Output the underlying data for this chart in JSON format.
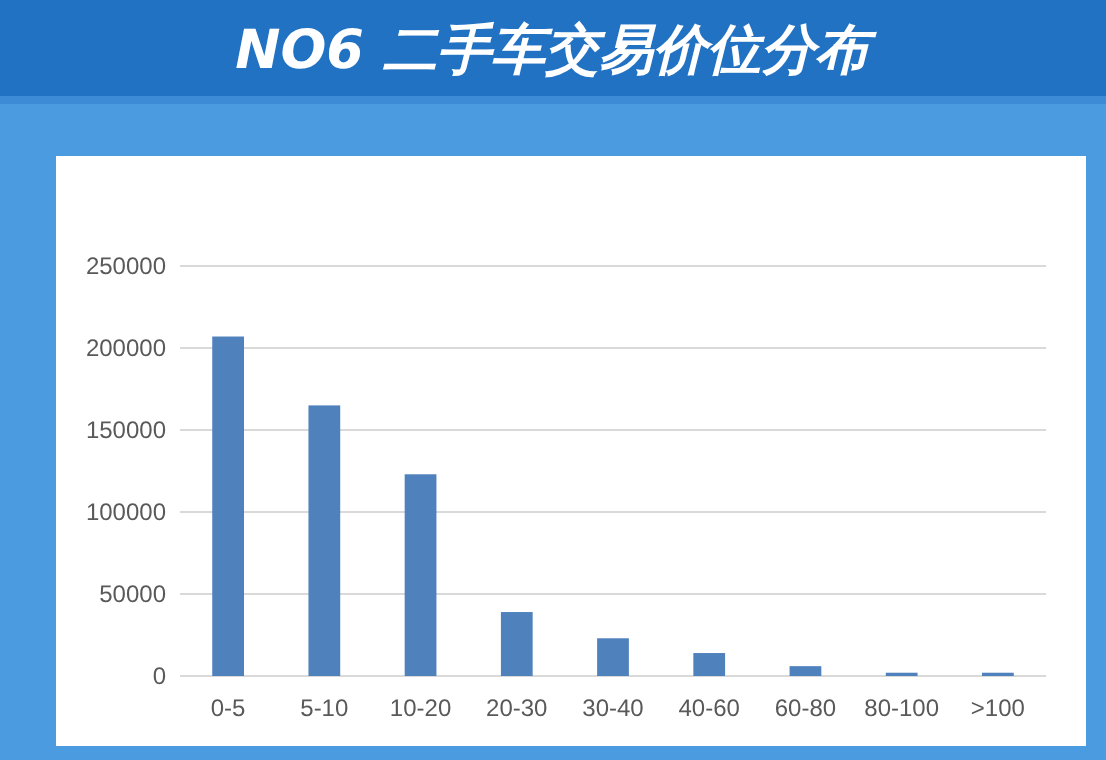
{
  "chart_data": {
    "type": "bar",
    "title": "NO6 二手车交易价位分布",
    "categories": [
      "0-5",
      "5-10",
      "10-20",
      "20-30",
      "30-40",
      "40-60",
      "60-80",
      "80-100",
      ">100"
    ],
    "values": [
      207000,
      165000,
      123000,
      39000,
      23000,
      14000,
      6000,
      2000,
      2000
    ],
    "color": "#4f81bd",
    "ylim": [
      0,
      250000
    ],
    "yticks": [
      0,
      50000,
      100000,
      150000,
      200000,
      250000
    ],
    "grid": "y"
  }
}
